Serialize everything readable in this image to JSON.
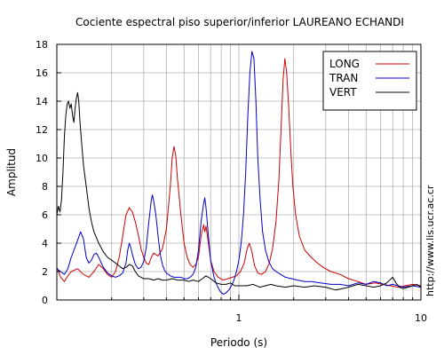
{
  "chart_data": {
    "type": "line",
    "title": "Cociente espectral piso superior/inferior LAUREANO ECHANDI",
    "xlabel": "Periodo (s)",
    "ylabel": "Amplitud",
    "x_scale": "log",
    "xlim": [
      0.1,
      10
    ],
    "ylim": [
      0,
      18
    ],
    "y_ticks": [
      0,
      2,
      4,
      6,
      8,
      10,
      12,
      14,
      16,
      18
    ],
    "x_tick_labels": [
      {
        "value": 1,
        "label": "1"
      },
      {
        "value": 10,
        "label": "10"
      }
    ],
    "grid": true,
    "legend_position": "top-right",
    "series": [
      {
        "name": "LONG",
        "color": "#cc0000",
        "points": [
          [
            0.1,
            2.3
          ],
          [
            0.105,
            1.6
          ],
          [
            0.11,
            1.3
          ],
          [
            0.115,
            1.7
          ],
          [
            0.12,
            2.0
          ],
          [
            0.13,
            2.2
          ],
          [
            0.14,
            1.8
          ],
          [
            0.15,
            1.6
          ],
          [
            0.16,
            2.0
          ],
          [
            0.17,
            2.5
          ],
          [
            0.18,
            2.2
          ],
          [
            0.19,
            1.8
          ],
          [
            0.2,
            1.6
          ],
          [
            0.21,
            2.0
          ],
          [
            0.22,
            3.0
          ],
          [
            0.23,
            4.5
          ],
          [
            0.24,
            6.0
          ],
          [
            0.25,
            6.5
          ],
          [
            0.26,
            6.2
          ],
          [
            0.27,
            5.5
          ],
          [
            0.28,
            4.6
          ],
          [
            0.29,
            3.6
          ],
          [
            0.3,
            3.0
          ],
          [
            0.31,
            2.6
          ],
          [
            0.32,
            2.5
          ],
          [
            0.33,
            3.0
          ],
          [
            0.34,
            3.3
          ],
          [
            0.36,
            3.1
          ],
          [
            0.38,
            3.6
          ],
          [
            0.4,
            5.0
          ],
          [
            0.42,
            8.0
          ],
          [
            0.43,
            10.0
          ],
          [
            0.44,
            10.8
          ],
          [
            0.45,
            10.2
          ],
          [
            0.46,
            8.5
          ],
          [
            0.48,
            6.0
          ],
          [
            0.5,
            4.0
          ],
          [
            0.52,
            3.0
          ],
          [
            0.54,
            2.5
          ],
          [
            0.56,
            2.3
          ],
          [
            0.58,
            2.5
          ],
          [
            0.6,
            3.0
          ],
          [
            0.62,
            4.5
          ],
          [
            0.64,
            5.3
          ],
          [
            0.65,
            4.8
          ],
          [
            0.66,
            5.2
          ],
          [
            0.68,
            4.0
          ],
          [
            0.7,
            2.8
          ],
          [
            0.73,
            2.0
          ],
          [
            0.77,
            1.6
          ],
          [
            0.82,
            1.4
          ],
          [
            0.87,
            1.5
          ],
          [
            0.92,
            1.6
          ],
          [
            0.97,
            1.7
          ],
          [
            1.02,
            2.0
          ],
          [
            1.07,
            2.6
          ],
          [
            1.11,
            3.6
          ],
          [
            1.14,
            4.0
          ],
          [
            1.18,
            3.4
          ],
          [
            1.22,
            2.4
          ],
          [
            1.27,
            1.9
          ],
          [
            1.33,
            1.8
          ],
          [
            1.4,
            2.0
          ],
          [
            1.47,
            2.6
          ],
          [
            1.53,
            3.6
          ],
          [
            1.6,
            5.5
          ],
          [
            1.66,
            8.5
          ],
          [
            1.71,
            12.5
          ],
          [
            1.75,
            15.5
          ],
          [
            1.79,
            17.0
          ],
          [
            1.83,
            16.0
          ],
          [
            1.88,
            13.5
          ],
          [
            1.93,
            10.5
          ],
          [
            1.98,
            8.0
          ],
          [
            2.05,
            6.0
          ],
          [
            2.15,
            4.5
          ],
          [
            2.3,
            3.5
          ],
          [
            2.5,
            3.0
          ],
          [
            2.7,
            2.6
          ],
          [
            2.9,
            2.3
          ],
          [
            3.2,
            2.0
          ],
          [
            3.6,
            1.8
          ],
          [
            4.0,
            1.5
          ],
          [
            4.5,
            1.3
          ],
          [
            5.0,
            1.1
          ],
          [
            5.6,
            1.2
          ],
          [
            6.2,
            1.1
          ],
          [
            6.8,
            1.0
          ],
          [
            7.5,
            0.9
          ],
          [
            8.2,
            1.0
          ],
          [
            9.0,
            1.1
          ],
          [
            10.0,
            1.0
          ]
        ]
      },
      {
        "name": "TRAN",
        "color": "#0000cc",
        "points": [
          [
            0.1,
            2.2
          ],
          [
            0.105,
            2.0
          ],
          [
            0.11,
            1.8
          ],
          [
            0.115,
            2.2
          ],
          [
            0.12,
            3.0
          ],
          [
            0.13,
            4.2
          ],
          [
            0.135,
            4.8
          ],
          [
            0.14,
            4.3
          ],
          [
            0.145,
            3.0
          ],
          [
            0.15,
            2.6
          ],
          [
            0.155,
            2.8
          ],
          [
            0.16,
            3.2
          ],
          [
            0.165,
            3.3
          ],
          [
            0.17,
            3.0
          ],
          [
            0.18,
            2.3
          ],
          [
            0.19,
            1.9
          ],
          [
            0.2,
            1.7
          ],
          [
            0.21,
            1.6
          ],
          [
            0.22,
            1.7
          ],
          [
            0.23,
            1.9
          ],
          [
            0.24,
            2.6
          ],
          [
            0.245,
            3.5
          ],
          [
            0.25,
            4.0
          ],
          [
            0.255,
            3.7
          ],
          [
            0.26,
            3.2
          ],
          [
            0.27,
            2.5
          ],
          [
            0.28,
            2.2
          ],
          [
            0.29,
            2.3
          ],
          [
            0.3,
            2.7
          ],
          [
            0.31,
            3.7
          ],
          [
            0.32,
            5.5
          ],
          [
            0.33,
            7.0
          ],
          [
            0.335,
            7.4
          ],
          [
            0.34,
            7.0
          ],
          [
            0.35,
            6.0
          ],
          [
            0.36,
            4.5
          ],
          [
            0.37,
            3.2
          ],
          [
            0.38,
            2.5
          ],
          [
            0.39,
            2.1
          ],
          [
            0.4,
            1.9
          ],
          [
            0.42,
            1.7
          ],
          [
            0.44,
            1.6
          ],
          [
            0.46,
            1.6
          ],
          [
            0.48,
            1.6
          ],
          [
            0.5,
            1.5
          ],
          [
            0.52,
            1.5
          ],
          [
            0.54,
            1.6
          ],
          [
            0.56,
            1.8
          ],
          [
            0.58,
            2.3
          ],
          [
            0.6,
            3.5
          ],
          [
            0.62,
            5.5
          ],
          [
            0.64,
            6.8
          ],
          [
            0.65,
            7.2
          ],
          [
            0.66,
            6.5
          ],
          [
            0.68,
            4.5
          ],
          [
            0.7,
            2.8
          ],
          [
            0.73,
            1.6
          ],
          [
            0.76,
            1.0
          ],
          [
            0.79,
            0.6
          ],
          [
            0.82,
            0.4
          ],
          [
            0.85,
            0.5
          ],
          [
            0.88,
            0.7
          ],
          [
            0.91,
            1.0
          ],
          [
            0.94,
            1.4
          ],
          [
            0.97,
            2.0
          ],
          [
            1.0,
            2.8
          ],
          [
            1.03,
            4.0
          ],
          [
            1.06,
            6.0
          ],
          [
            1.09,
            9.0
          ],
          [
            1.12,
            13.0
          ],
          [
            1.15,
            16.0
          ],
          [
            1.18,
            17.5
          ],
          [
            1.21,
            17.0
          ],
          [
            1.24,
            14.0
          ],
          [
            1.27,
            10.0
          ],
          [
            1.31,
            7.0
          ],
          [
            1.35,
            4.8
          ],
          [
            1.4,
            3.5
          ],
          [
            1.46,
            2.7
          ],
          [
            1.53,
            2.2
          ],
          [
            1.6,
            2.0
          ],
          [
            1.7,
            1.8
          ],
          [
            1.8,
            1.6
          ],
          [
            1.95,
            1.5
          ],
          [
            2.1,
            1.4
          ],
          [
            2.3,
            1.3
          ],
          [
            2.5,
            1.3
          ],
          [
            2.8,
            1.2
          ],
          [
            3.2,
            1.1
          ],
          [
            3.6,
            1.1
          ],
          [
            4.0,
            1.0
          ],
          [
            4.5,
            1.2
          ],
          [
            5.0,
            1.1
          ],
          [
            5.5,
            1.3
          ],
          [
            6.0,
            1.2
          ],
          [
            6.5,
            1.0
          ],
          [
            7.0,
            1.1
          ],
          [
            7.5,
            1.0
          ],
          [
            8.0,
            0.9
          ],
          [
            9.0,
            1.0
          ],
          [
            10.0,
            0.9
          ]
        ]
      },
      {
        "name": "VERT",
        "color": "#000000",
        "points": [
          [
            0.1,
            6.0
          ],
          [
            0.102,
            6.6
          ],
          [
            0.104,
            6.2
          ],
          [
            0.106,
            7.0
          ],
          [
            0.108,
            9.0
          ],
          [
            0.11,
            11.5
          ],
          [
            0.112,
            13.0
          ],
          [
            0.114,
            13.8
          ],
          [
            0.116,
            14.0
          ],
          [
            0.118,
            13.5
          ],
          [
            0.12,
            13.8
          ],
          [
            0.122,
            13.0
          ],
          [
            0.124,
            12.5
          ],
          [
            0.126,
            13.5
          ],
          [
            0.128,
            14.2
          ],
          [
            0.13,
            14.6
          ],
          [
            0.132,
            14.0
          ],
          [
            0.134,
            12.5
          ],
          [
            0.137,
            11.0
          ],
          [
            0.14,
            9.5
          ],
          [
            0.145,
            8.0
          ],
          [
            0.15,
            6.5
          ],
          [
            0.155,
            5.5
          ],
          [
            0.16,
            4.8
          ],
          [
            0.17,
            4.0
          ],
          [
            0.18,
            3.4
          ],
          [
            0.19,
            3.0
          ],
          [
            0.2,
            2.8
          ],
          [
            0.21,
            2.6
          ],
          [
            0.22,
            2.4
          ],
          [
            0.23,
            2.2
          ],
          [
            0.24,
            2.3
          ],
          [
            0.25,
            2.5
          ],
          [
            0.26,
            2.4
          ],
          [
            0.27,
            2.0
          ],
          [
            0.28,
            1.7
          ],
          [
            0.29,
            1.6
          ],
          [
            0.3,
            1.5
          ],
          [
            0.32,
            1.5
          ],
          [
            0.34,
            1.4
          ],
          [
            0.36,
            1.5
          ],
          [
            0.38,
            1.4
          ],
          [
            0.4,
            1.4
          ],
          [
            0.43,
            1.5
          ],
          [
            0.46,
            1.4
          ],
          [
            0.5,
            1.4
          ],
          [
            0.53,
            1.3
          ],
          [
            0.56,
            1.4
          ],
          [
            0.6,
            1.3
          ],
          [
            0.63,
            1.5
          ],
          [
            0.66,
            1.7
          ],
          [
            0.7,
            1.5
          ],
          [
            0.75,
            1.2
          ],
          [
            0.8,
            1.1
          ],
          [
            0.85,
            1.1
          ],
          [
            0.9,
            1.2
          ],
          [
            0.95,
            1.0
          ],
          [
            1.0,
            1.0
          ],
          [
            1.1,
            1.0
          ],
          [
            1.2,
            1.1
          ],
          [
            1.3,
            0.9
          ],
          [
            1.4,
            1.0
          ],
          [
            1.5,
            1.1
          ],
          [
            1.6,
            1.0
          ],
          [
            1.8,
            0.9
          ],
          [
            2.0,
            1.0
          ],
          [
            2.3,
            0.9
          ],
          [
            2.6,
            1.0
          ],
          [
            3.0,
            0.9
          ],
          [
            3.4,
            0.7
          ],
          [
            3.7,
            0.8
          ],
          [
            4.0,
            0.9
          ],
          [
            4.5,
            1.1
          ],
          [
            5.0,
            1.0
          ],
          [
            5.5,
            0.9
          ],
          [
            6.0,
            1.0
          ],
          [
            6.5,
            1.2
          ],
          [
            7.0,
            1.6
          ],
          [
            7.3,
            1.2
          ],
          [
            7.6,
            0.9
          ],
          [
            8.0,
            0.8
          ],
          [
            8.5,
            0.9
          ],
          [
            9.0,
            1.0
          ],
          [
            9.5,
            1.1
          ],
          [
            10.0,
            0.9
          ]
        ]
      }
    ]
  },
  "side_url": "http://www.lis.ucr.ac.cr"
}
